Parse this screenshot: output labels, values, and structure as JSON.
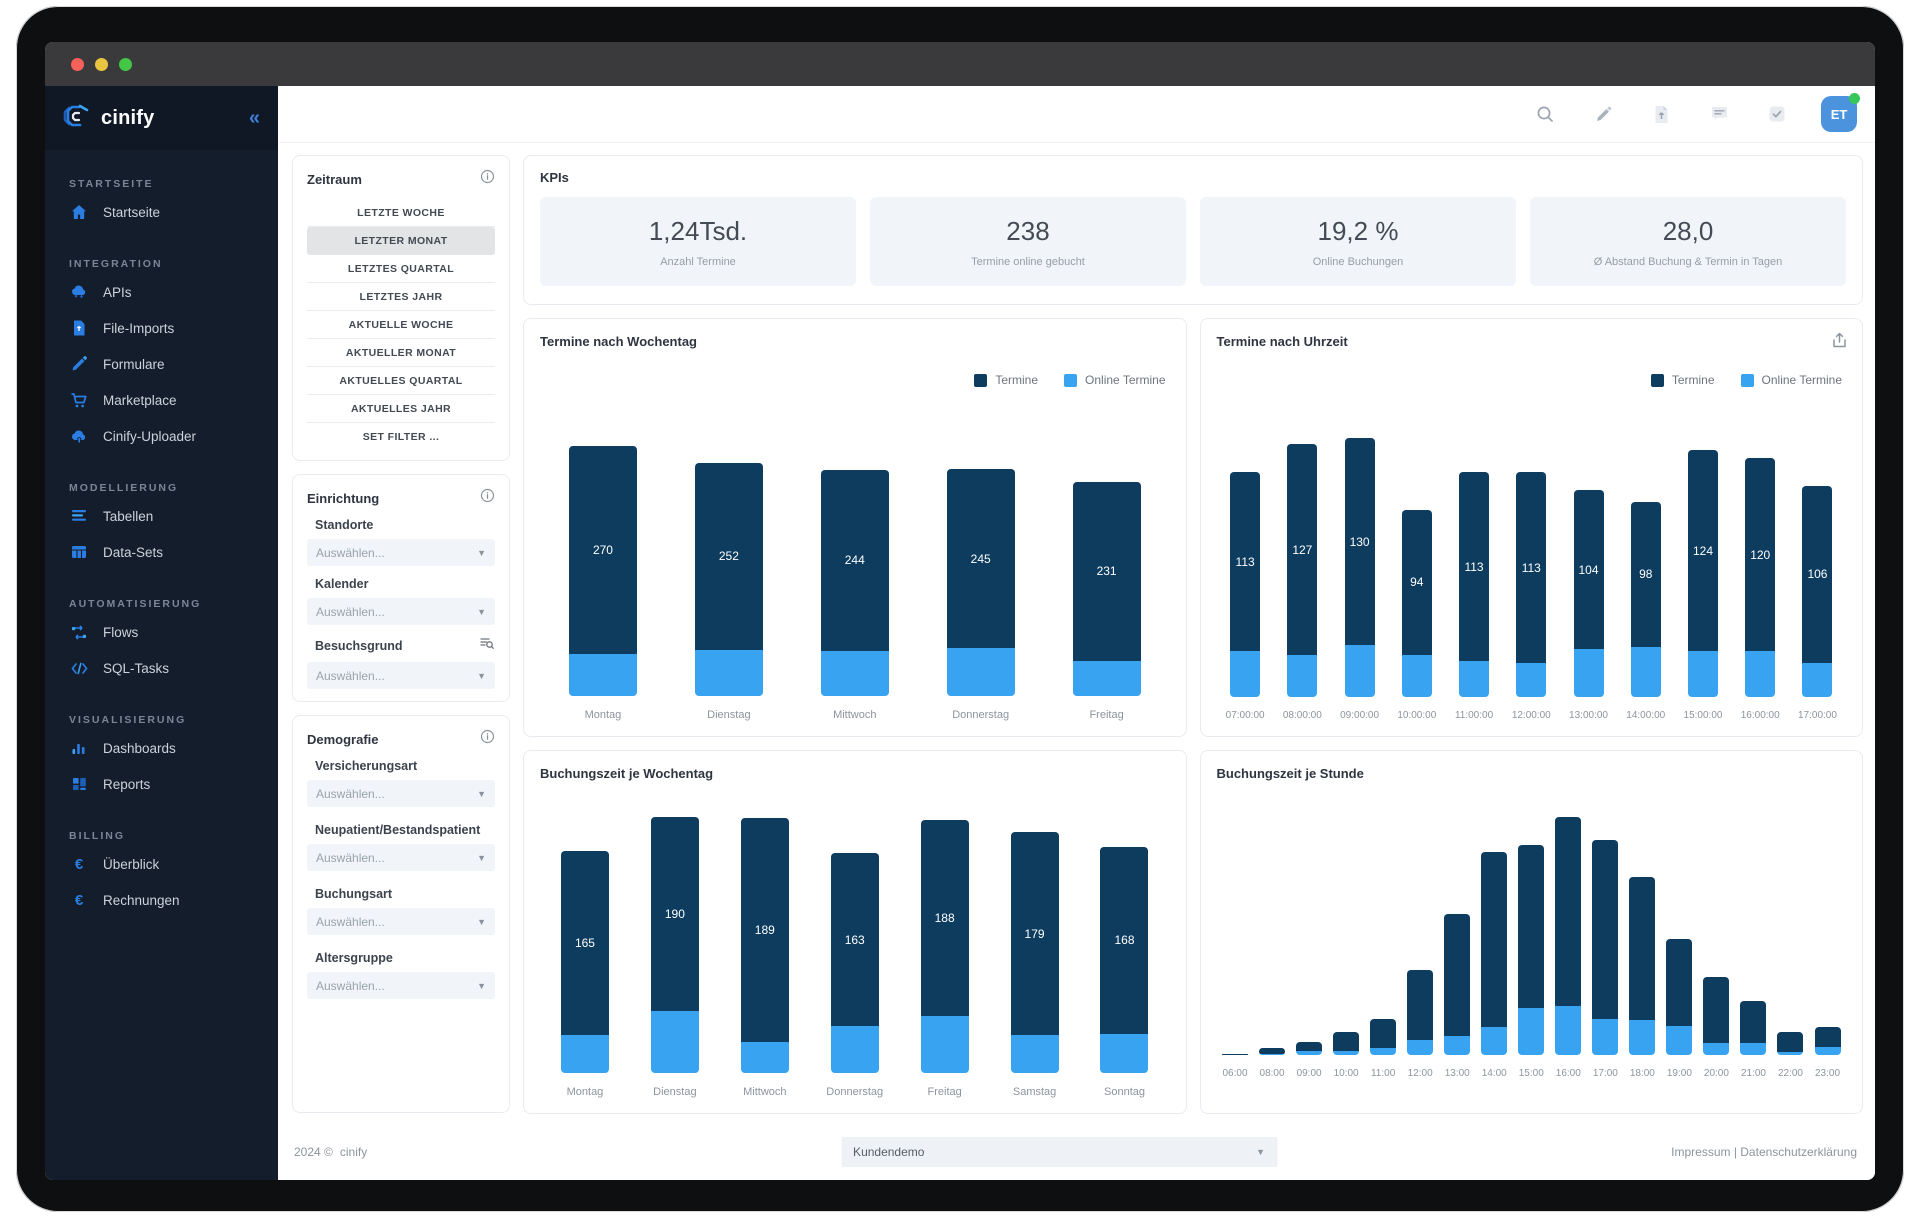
{
  "sidebar": {
    "brand": "cinify",
    "collapse_icon": "«",
    "sections": [
      {
        "header": "STARTSEITE",
        "items": [
          {
            "label": "Startseite",
            "icon": "home-icon"
          }
        ]
      },
      {
        "header": "INTEGRATION",
        "items": [
          {
            "label": "APIs",
            "icon": "cloud-icon"
          },
          {
            "label": "File-Imports",
            "icon": "file-icon"
          },
          {
            "label": "Formulare",
            "icon": "pencil-icon"
          },
          {
            "label": "Marketplace",
            "icon": "cart-icon"
          },
          {
            "label": "Cinify-Uploader",
            "icon": "cloud-upload-icon"
          }
        ]
      },
      {
        "header": "MODELLIERUNG",
        "items": [
          {
            "label": "Tabellen",
            "icon": "rows-icon"
          },
          {
            "label": "Data-Sets",
            "icon": "table-icon"
          }
        ]
      },
      {
        "header": "AUTOMATISIERUNG",
        "items": [
          {
            "label": "Flows",
            "icon": "flow-icon"
          },
          {
            "label": "SQL-Tasks",
            "icon": "code-icon"
          }
        ]
      },
      {
        "header": "VISUALISIERUNG",
        "items": [
          {
            "label": "Dashboards",
            "icon": "bar-chart-icon"
          },
          {
            "label": "Reports",
            "icon": "grid-icon"
          }
        ]
      },
      {
        "header": "BILLING",
        "items": [
          {
            "label": "Überblick",
            "icon": "euro-icon",
            "glyph": "€"
          },
          {
            "label": "Rechnungen",
            "icon": "euro-icon",
            "glyph": "€"
          }
        ]
      }
    ]
  },
  "topbar": {
    "avatar_initials": "ET"
  },
  "filters": {
    "zeitraum": {
      "title": "Zeitraum",
      "options": [
        "LETZTE WOCHE",
        "LETZTER MONAT",
        "LETZTES QUARTAL",
        "LETZTES JAHR",
        "AKTUELLE WOCHE",
        "AKTUELLER MONAT",
        "AKTUELLES QUARTAL",
        "AKTUELLES JAHR"
      ],
      "active_option": "LETZTER MONAT",
      "set_filter_label": "SET FILTER ..."
    },
    "einrichtung": {
      "title": "Einrichtung",
      "fields": [
        {
          "label": "Standorte",
          "placeholder": "Auswählen..."
        },
        {
          "label": "Kalender",
          "placeholder": "Auswählen..."
        },
        {
          "label": "Besuchsgrund",
          "placeholder": "Auswählen..."
        }
      ]
    },
    "demografie": {
      "title": "Demografie",
      "fields": [
        {
          "label": "Versicherungsart",
          "placeholder": "Auswählen..."
        },
        {
          "label": "Neupatient/Bestandspatient",
          "placeholder": "Auswählen..."
        },
        {
          "label": "Buchungsart",
          "placeholder": "Auswählen..."
        },
        {
          "label": "Altersgruppe",
          "placeholder": "Auswählen..."
        }
      ]
    }
  },
  "kpis": {
    "title": "KPIs",
    "items": [
      {
        "value": "1,24Tsd.",
        "label": "Anzahl Termine"
      },
      {
        "value": "238",
        "label": "Termine online gebucht"
      },
      {
        "value": "19,2 %",
        "label": "Online Buchungen"
      },
      {
        "value": "28,0",
        "label": "Ø Abstand Buchung & Termin in Tagen"
      }
    ]
  },
  "legend": {
    "termine": "Termine",
    "online": "Online Termine"
  },
  "colors": {
    "termine": "#0d3c5f",
    "online_termine": "#38a3f1",
    "accent_blue": "#2a7de1",
    "avatar_blue": "#4b93dd",
    "online_dot_green": "#35c759"
  },
  "chart_data": [
    {
      "type": "bar",
      "stacked": true,
      "title": "Termine nach Wochentag",
      "categories": [
        "Montag",
        "Dienstag",
        "Mittwoch",
        "Donnerstag",
        "Freitag"
      ],
      "series": [
        {
          "name": "Termine",
          "values": [
            270,
            252,
            244,
            245,
            231
          ]
        },
        {
          "name": "Online Termine",
          "values": [
            45,
            50,
            49,
            52,
            38
          ]
        }
      ],
      "bar_labels": "Termine totals shown inside bars",
      "labels_shown": true,
      "legend": true,
      "legend_position": "top-right",
      "note": "Online Termine segment values estimated from bar heights"
    },
    {
      "type": "bar",
      "stacked": true,
      "title": "Termine nach Uhrzeit",
      "categories": [
        "07:00:00",
        "08:00:00",
        "09:00:00",
        "10:00:00",
        "11:00:00",
        "12:00:00",
        "13:00:00",
        "14:00:00",
        "15:00:00",
        "16:00:00",
        "17:00:00"
      ],
      "series": [
        {
          "name": "Termine",
          "values": [
            113,
            127,
            130,
            94,
            113,
            113,
            104,
            98,
            124,
            120,
            106
          ]
        },
        {
          "name": "Online Termine",
          "values": [
            23,
            21,
            26,
            21,
            18,
            17,
            24,
            25,
            23,
            23,
            17
          ]
        }
      ],
      "labels_shown": true,
      "legend": true,
      "legend_position": "top-right",
      "export_icon": true,
      "note": "Online Termine segment values estimated from bar heights"
    },
    {
      "type": "bar",
      "stacked": true,
      "title": "Buchungszeit je Wochentag",
      "categories": [
        "Montag",
        "Dienstag",
        "Mittwoch",
        "Donnerstag",
        "Freitag",
        "Samstag",
        "Sonntag"
      ],
      "series": [
        {
          "name": "Termine",
          "values": [
            165,
            190,
            189,
            163,
            188,
            179,
            168
          ]
        },
        {
          "name": "Online Termine",
          "values": [
            28,
            46,
            23,
            35,
            42,
            28,
            29
          ]
        }
      ],
      "labels_shown": true,
      "legend": false,
      "note": "Online Termine segment values estimated from bar heights"
    },
    {
      "type": "bar",
      "stacked": true,
      "title": "Buchungszeit je Stunde",
      "categories": [
        "06:00",
        "08:00",
        "09:00",
        "10:00",
        "11:00",
        "12:00",
        "13:00",
        "14:00",
        "15:00",
        "16:00",
        "17:00",
        "18:00",
        "19:00",
        "20:00",
        "21:00",
        "22:00",
        "23:00"
      ],
      "series": [
        {
          "name": "Termine",
          "values": [
            1,
            5,
            10,
            17,
            27,
            64,
            106,
            153,
            158,
            179,
            162,
            134,
            87,
            59,
            41,
            17,
            21
          ]
        },
        {
          "name": "Online Termine",
          "values": [
            0,
            1,
            3,
            3,
            5,
            11,
            14,
            21,
            35,
            37,
            27,
            26,
            22,
            9,
            9,
            2,
            6
          ]
        }
      ],
      "labels_shown": false,
      "legend": false,
      "note": "All values estimated from bar heights; no data labels shown in chart"
    }
  ],
  "footer": {
    "copyright": "2024 ©",
    "brand": "cinify",
    "select_value": "Kundendemo",
    "links": "Impressum | Datenschutzerklärung"
  }
}
